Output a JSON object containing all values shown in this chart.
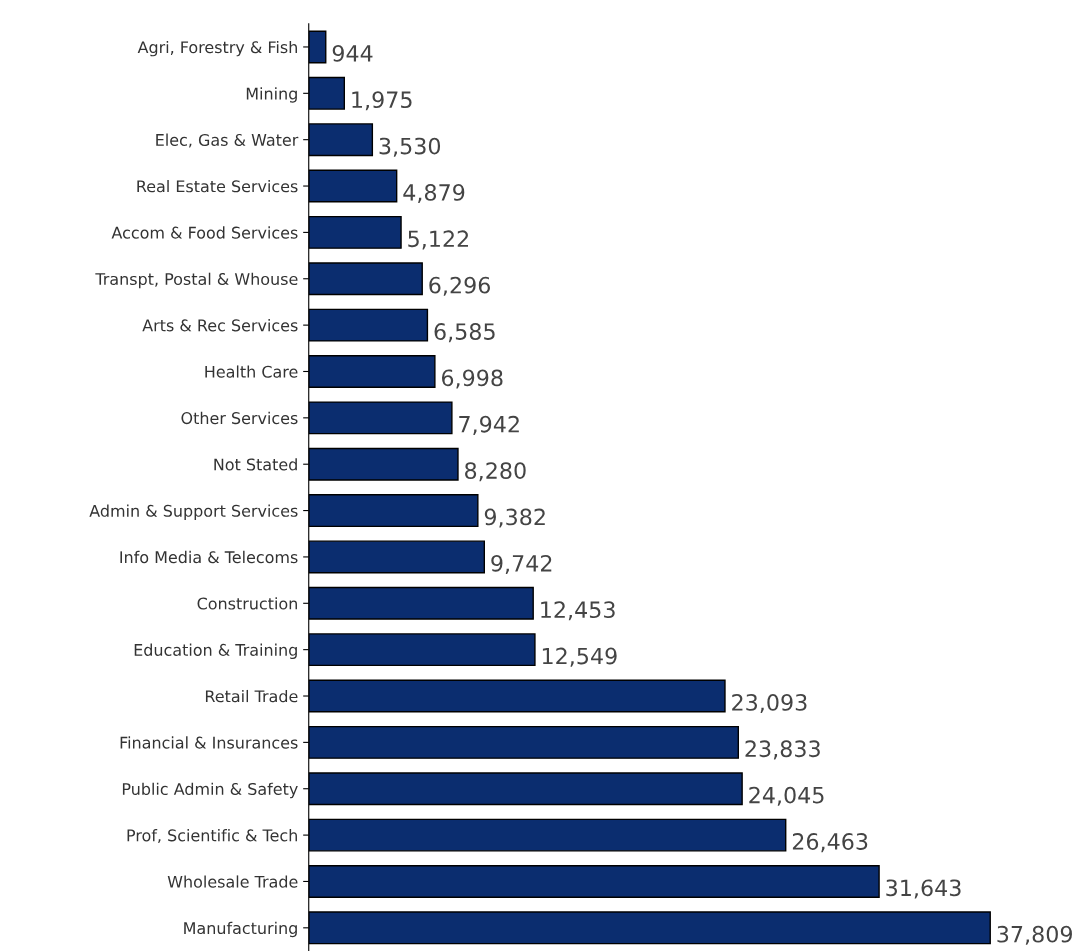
{
  "chart_data": {
    "type": "bar",
    "orientation": "horizontal",
    "color": "#0b2d6f",
    "value_labels": [
      "944",
      "1,975",
      "3,530",
      "4,879",
      "5,122",
      "6,296",
      "6,585",
      "6,998",
      "7,942",
      "8,280",
      "9,382",
      "9,742",
      "12,453",
      "12,549",
      "23,093",
      "23,833",
      "24,045",
      "26,463",
      "31,643",
      "37,809"
    ],
    "categories": [
      "Agri, Forestry & Fish",
      "Mining",
      "Elec, Gas & Water",
      "Real Estate Services",
      "Accom & Food Services",
      "Transpt, Postal & Whouse",
      "Arts & Rec Services",
      "Health Care",
      "Other Services",
      "Not Stated",
      "Admin & Support Services",
      "Info Media & Telecoms",
      "Construction",
      "Education & Training",
      "Retail Trade",
      "Financial & Insurances",
      "Public Admin & Safety",
      "Prof, Scientific & Tech",
      "Wholesale Trade",
      "Manufacturing"
    ],
    "values": [
      944,
      1975,
      3530,
      4879,
      5122,
      6296,
      6585,
      6998,
      7942,
      8280,
      9382,
      9742,
      12453,
      12549,
      23093,
      23833,
      24045,
      26463,
      31643,
      37809
    ]
  }
}
